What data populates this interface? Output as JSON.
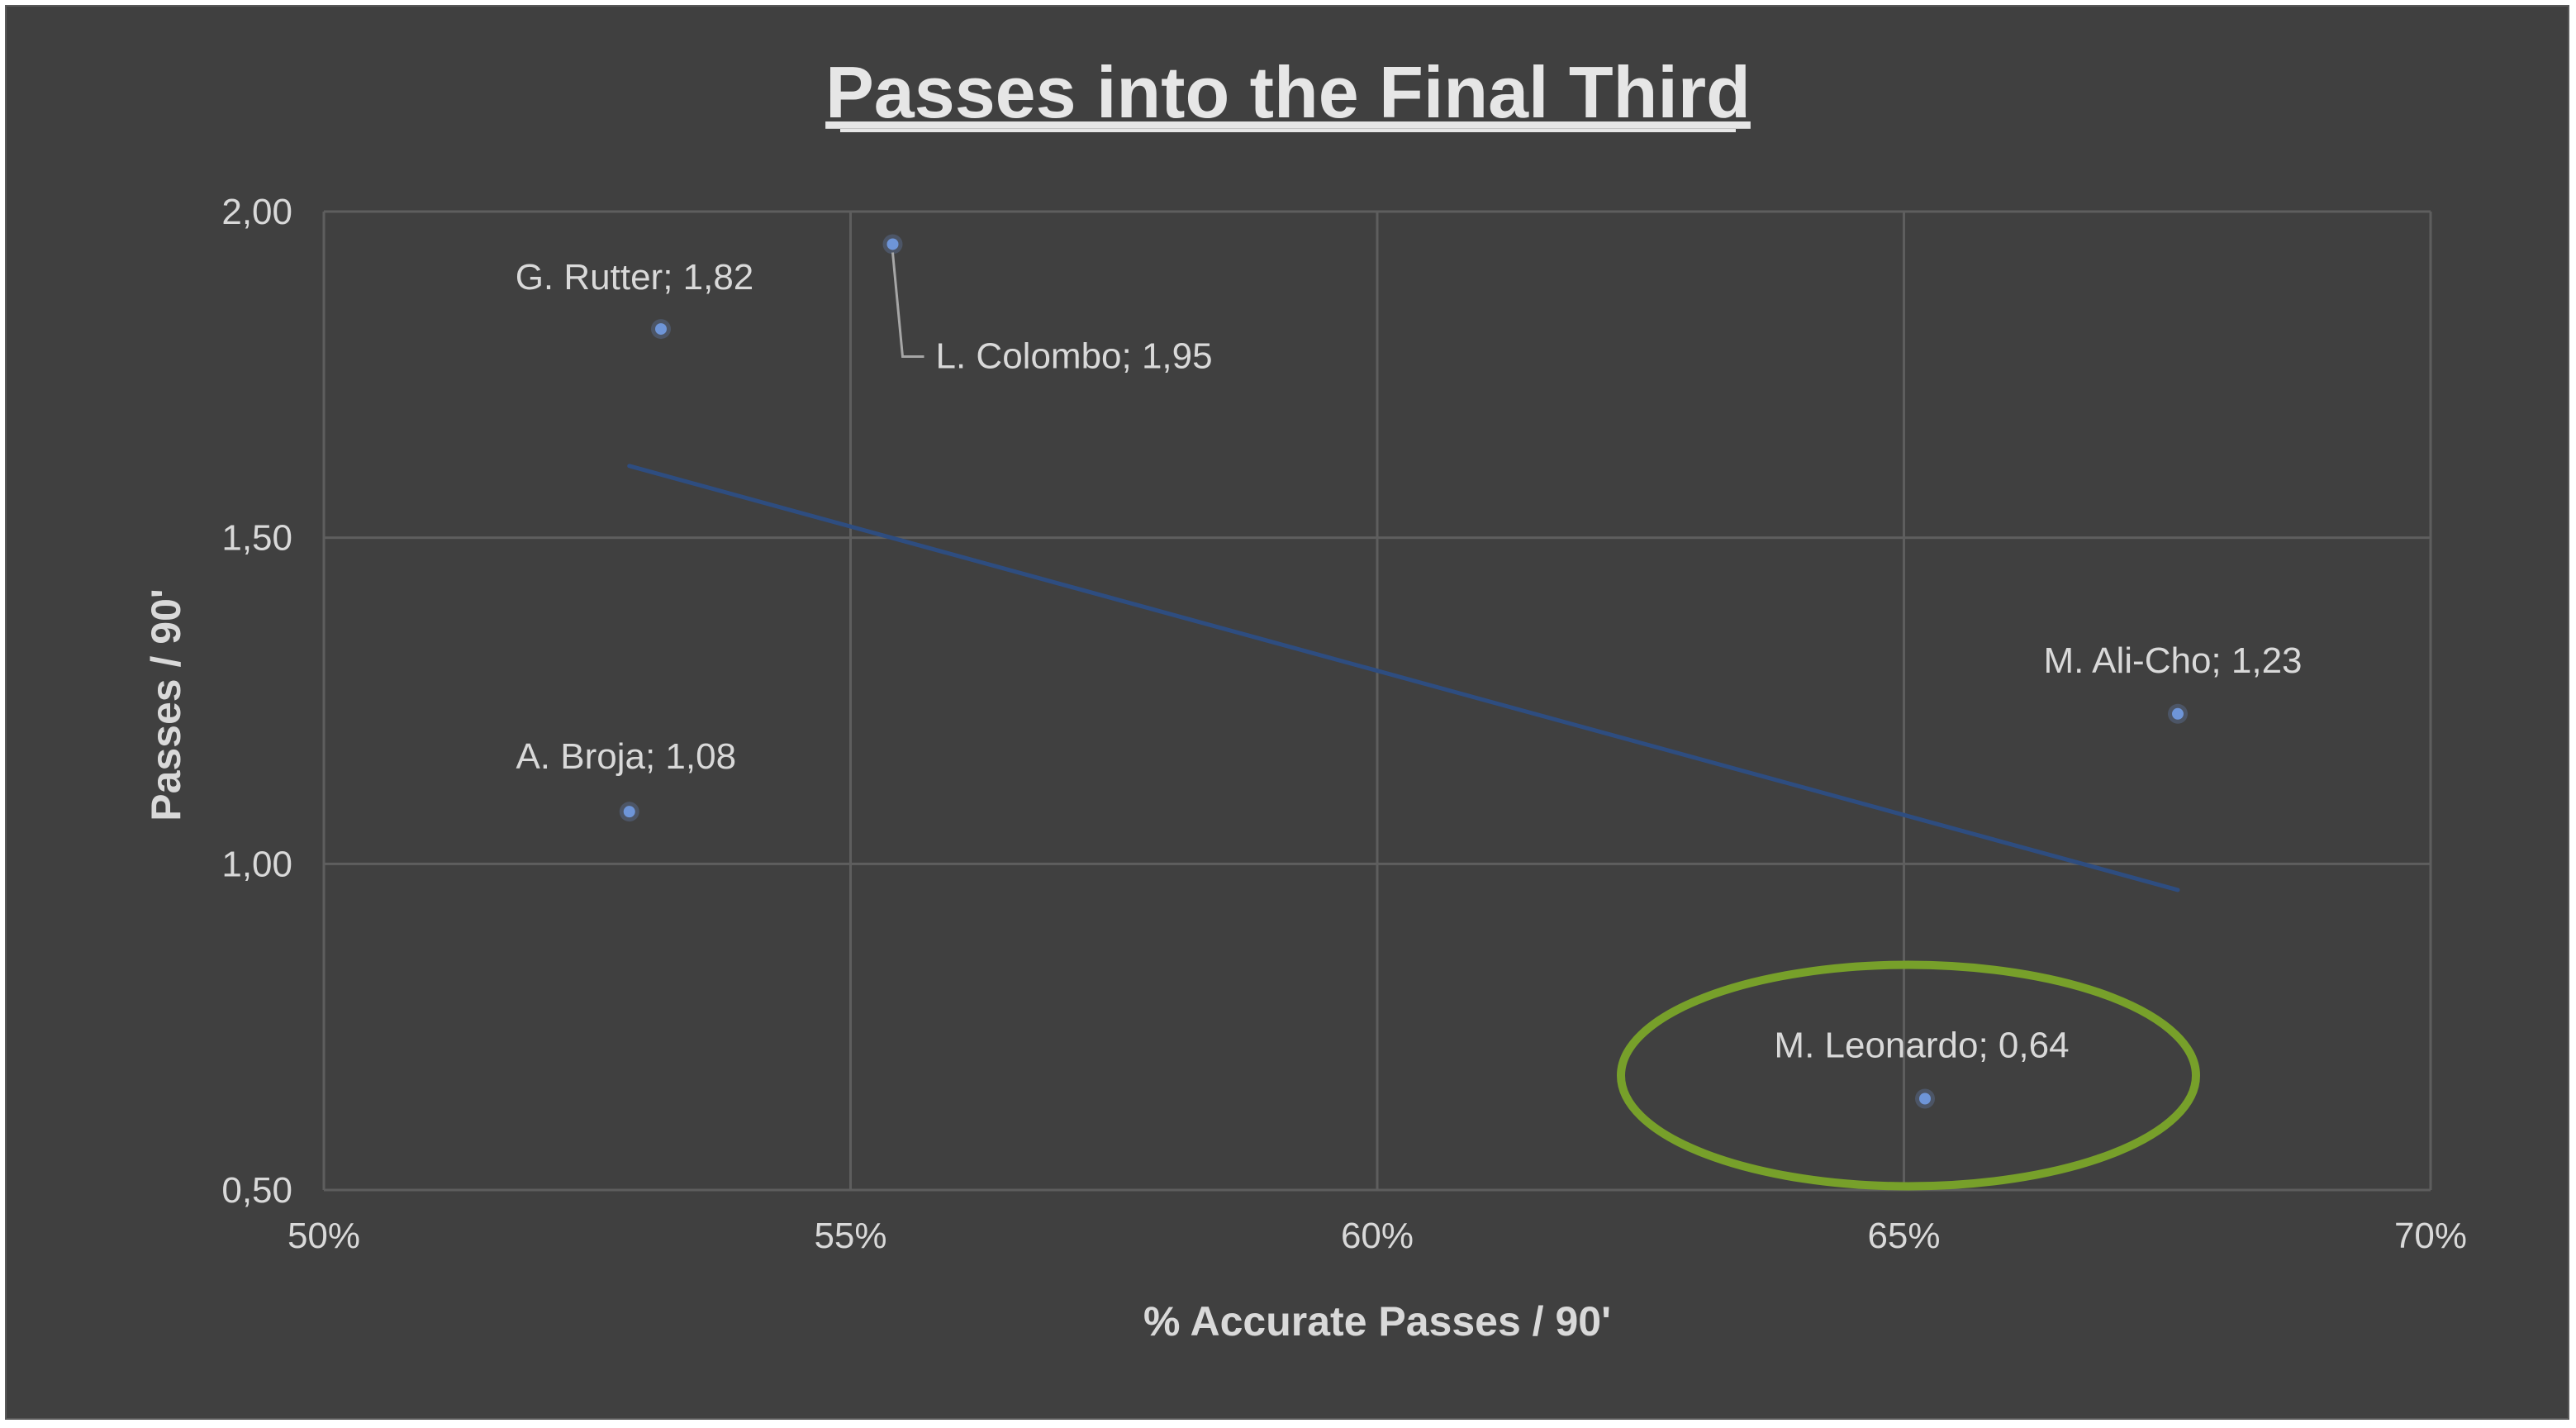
{
  "chart_data": {
    "type": "scatter",
    "title": "Passes into the Final Third",
    "xlabel": "%  Accurate Passes / 90'",
    "ylabel": "Passes / 90'",
    "xlim": [
      0.5,
      0.7
    ],
    "ylim": [
      0.5,
      2.0
    ],
    "x_ticks": [
      0.5,
      0.55,
      0.6,
      0.65,
      0.7
    ],
    "x_tick_labels": [
      "50%",
      "55%",
      "60%",
      "65%",
      "70%"
    ],
    "y_ticks": [
      0.5,
      1.0,
      1.5,
      2.0
    ],
    "y_tick_labels": [
      "0,50",
      "1,00",
      "1,50",
      "2,00"
    ],
    "grid": true,
    "points": [
      {
        "name": "G. Rutter",
        "x": 0.532,
        "y": 1.82,
        "label": "G. Rutter; 1,82"
      },
      {
        "name": "L. Colombo",
        "x": 0.554,
        "y": 1.95,
        "label": "L. Colombo; 1,95"
      },
      {
        "name": "A. Broja",
        "x": 0.529,
        "y": 1.08,
        "label": "A. Broja; 1,08"
      },
      {
        "name": "M. Ali-Cho",
        "x": 0.676,
        "y": 1.23,
        "label": "M. Ali-Cho; 1,23"
      },
      {
        "name": "M. Leonardo",
        "x": 0.652,
        "y": 0.64,
        "label": "M. Leonardo; 0,64"
      }
    ],
    "trendline": {
      "type": "linear",
      "x": [
        0.529,
        0.676
      ],
      "y": [
        1.61,
        0.96
      ]
    },
    "highlight": {
      "point": "M. Leonardo",
      "shape": "ellipse",
      "color": "#77a02a"
    },
    "colors": {
      "background": "#404040",
      "marker": "#6e95d8",
      "trendline": "#2e4d80",
      "grid": "#5e5e5e",
      "text": "#d9d9d9"
    }
  }
}
